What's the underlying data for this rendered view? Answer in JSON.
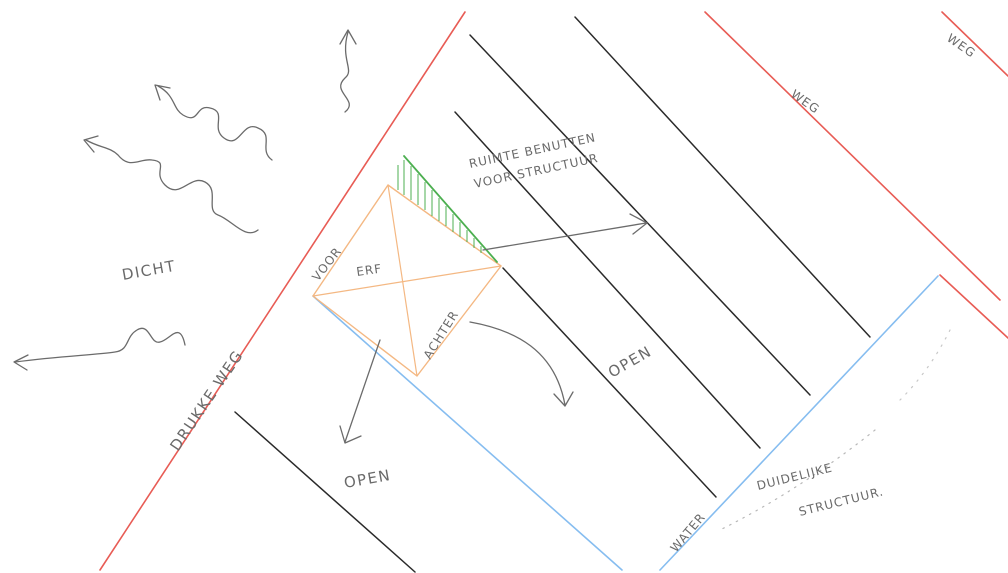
{
  "colors": {
    "road": "#e85c55",
    "field_line": "#2a2a2a",
    "water": "#86bdf0",
    "erf": "#f4b883",
    "hatch": "#4caf50",
    "arrow": "#6b6b6b",
    "ink": "#6a6a6a"
  },
  "labels": {
    "dicht": "DICHT",
    "drukke_weg": "DRUKKE WEG",
    "voor": "VOOR",
    "erf": "ERF",
    "achter": "ACHTER",
    "ruimte": "RUIMTE BENUTTEN",
    "voor_structuur": "VOOR STRUCTUUR",
    "open_center": "OPEN",
    "open_bottom": "OPEN",
    "weg_1": "WEG",
    "weg_2": "WEG",
    "water": "WATER",
    "duidelijke": "DUIDELIJKE",
    "structuur": "STRUCTUUR."
  }
}
